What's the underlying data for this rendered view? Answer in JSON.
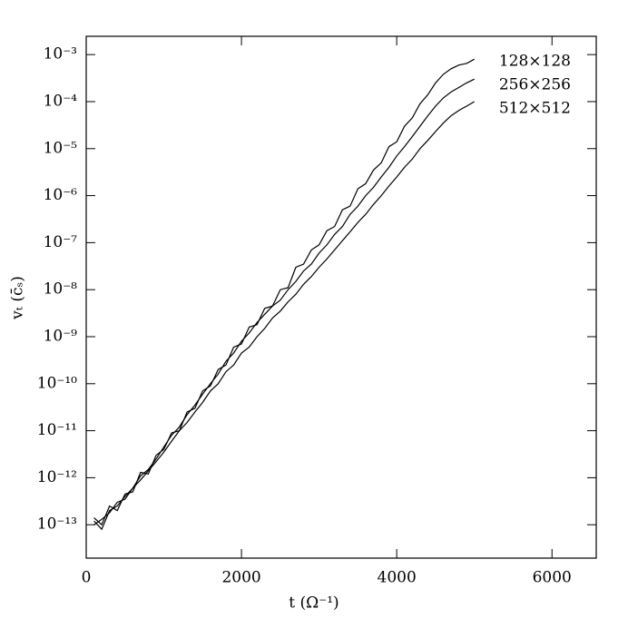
{
  "chart_data": {
    "type": "line",
    "x_label": "t (Ω⁻¹)",
    "y_label": "vₜ (c̄ₛ)",
    "log_y": true,
    "legend": "upper right",
    "xlim": [
      0,
      6570
    ],
    "ylim": [
      1.95e-14,
      0.00245
    ],
    "xticks": [
      0,
      2000,
      4000,
      6000
    ],
    "yticks": [
      {
        "value": 1e-13,
        "label": "10⁻¹³"
      },
      {
        "value": 1e-12,
        "label": "10⁻¹²"
      },
      {
        "value": 1e-11,
        "label": "10⁻¹¹"
      },
      {
        "value": 1e-10,
        "label": "10⁻¹⁰"
      },
      {
        "value": 1e-09,
        "label": "10⁻⁹"
      },
      {
        "value": 1e-08,
        "label": "10⁻⁸"
      },
      {
        "value": 1e-07,
        "label": "10⁻⁷"
      },
      {
        "value": 1e-06,
        "label": "10⁻⁶"
      },
      {
        "value": 1e-05,
        "label": "10⁻⁵"
      },
      {
        "value": 0.0001,
        "label": "10⁻⁴"
      },
      {
        "value": 0.001,
        "label": "10⁻³"
      }
    ],
    "x": [
      100,
      200,
      300,
      400,
      500,
      600,
      700,
      800,
      900,
      1000,
      1100,
      1200,
      1300,
      1400,
      1500,
      1600,
      1700,
      1800,
      1900,
      2000,
      2100,
      2200,
      2300,
      2400,
      2500,
      2600,
      2700,
      2800,
      2900,
      3000,
      3100,
      3200,
      3300,
      3400,
      3500,
      3600,
      3700,
      3800,
      3900,
      4000,
      4100,
      4200,
      4300,
      4400,
      4500,
      4600,
      4700,
      4800,
      4900,
      5000
    ],
    "series": [
      {
        "name": "128×128",
        "color": "#000000",
        "values": [
          1.4e-13,
          1e-13,
          2.5e-13,
          2e-13,
          4.5e-13,
          5e-13,
          1.3e-12,
          1.2e-12,
          3e-12,
          4e-12,
          9e-12,
          1e-11,
          2.5e-11,
          3e-11,
          7e-11,
          9e-11,
          2e-10,
          2.5e-10,
          6e-10,
          7e-10,
          1.6e-09,
          1.8e-09,
          4e-09,
          4.5e-09,
          1e-08,
          1.1e-08,
          3e-08,
          3.5e-08,
          7e-08,
          9e-08,
          1.8e-07,
          2.2e-07,
          5e-07,
          6e-07,
          1.4e-06,
          1.8e-06,
          3.5e-06,
          5e-06,
          1.1e-05,
          1.4e-05,
          3e-05,
          4.5e-05,
          9e-05,
          0.00014,
          0.00025,
          0.00038,
          0.0005,
          0.0006,
          0.00065,
          0.0008
        ]
      },
      {
        "name": "256×256",
        "color": "#000000",
        "values": [
          1.2e-13,
          8e-14,
          2e-13,
          2.5e-13,
          4e-13,
          6e-13,
          1.1e-12,
          1.5e-12,
          2.5e-12,
          4.5e-12,
          8e-12,
          1.2e-11,
          2.2e-11,
          3.5e-11,
          6e-11,
          1e-10,
          1.6e-10,
          3e-10,
          4.5e-10,
          8e-10,
          1.2e-09,
          2e-09,
          3e-09,
          4.5e-09,
          6e-09,
          1e-08,
          1.5e-08,
          2.5e-08,
          3.5e-08,
          6e-08,
          9e-08,
          1.5e-07,
          2.2e-07,
          4e-07,
          6e-07,
          1e-06,
          1.5e-06,
          2.5e-06,
          4e-06,
          7e-06,
          1.1e-05,
          1.8e-05,
          3e-05,
          5e-05,
          8e-05,
          0.00012,
          0.00016,
          0.0002,
          0.00025,
          0.0003
        ]
      },
      {
        "name": "512×512",
        "color": "#000000",
        "values": [
          1e-13,
          1.3e-13,
          1.8e-13,
          3e-13,
          3.5e-13,
          6e-13,
          9e-13,
          1.4e-12,
          2.2e-12,
          3.5e-12,
          6e-12,
          1e-11,
          1.5e-11,
          2.5e-11,
          4e-11,
          7e-11,
          1e-10,
          1.8e-10,
          2.5e-10,
          4.5e-10,
          6e-10,
          1e-09,
          1.5e-09,
          2.5e-09,
          3.5e-09,
          5.5e-09,
          8e-09,
          1.3e-08,
          1.9e-08,
          3e-08,
          4.5e-08,
          7e-08,
          1.1e-07,
          1.7e-07,
          2.7e-07,
          4e-07,
          6.5e-07,
          1e-06,
          1.6e-06,
          2.5e-06,
          4e-06,
          6e-06,
          1e-05,
          1.5e-05,
          2.3e-05,
          3.5e-05,
          5e-05,
          6.5e-05,
          8e-05,
          0.0001
        ]
      }
    ]
  }
}
